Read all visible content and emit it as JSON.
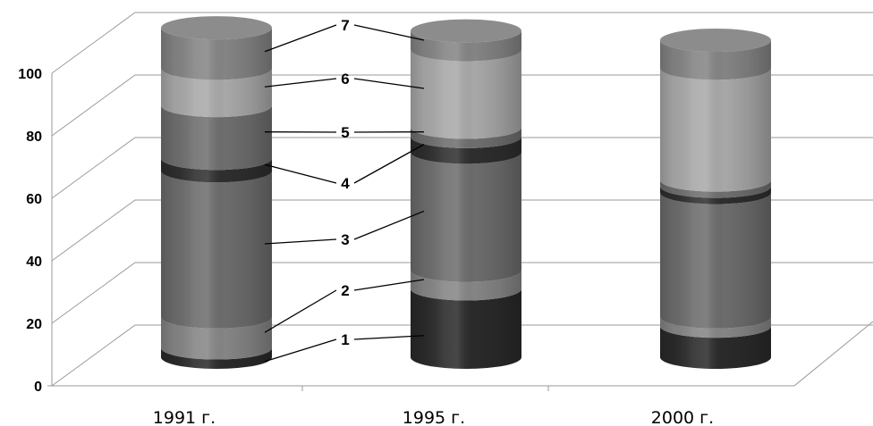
{
  "chart_data": {
    "type": "bar",
    "style": "stacked-3d-cylinder",
    "grayscale": true,
    "categories": [
      "1991 г.",
      "1995 г.",
      "2000 г."
    ],
    "series": [
      {
        "name": "1",
        "color": "#2a2a2a",
        "values": [
          3,
          22,
          10
        ]
      },
      {
        "name": "2",
        "color": "#858585",
        "values": [
          10,
          6,
          3
        ]
      },
      {
        "name": "3",
        "color": "#6c6c6c",
        "values": [
          47,
          38,
          40
        ]
      },
      {
        "name": "4",
        "color": "#2e2e2e",
        "values": [
          4,
          5,
          2
        ]
      },
      {
        "name": "5",
        "color": "#6e6e6e",
        "values": [
          17,
          3,
          2
        ]
      },
      {
        "name": "6",
        "color": "#a8a8a8",
        "values": [
          12,
          25,
          36
        ]
      },
      {
        "name": "7",
        "color": "#848484",
        "values": [
          13,
          6,
          9
        ]
      }
    ],
    "yticks": [
      "0",
      "20",
      "40",
      "60",
      "80",
      "100"
    ],
    "ylim": [
      0,
      100
    ],
    "grid": true,
    "legend": "callout labels 1–7 on middle column"
  }
}
